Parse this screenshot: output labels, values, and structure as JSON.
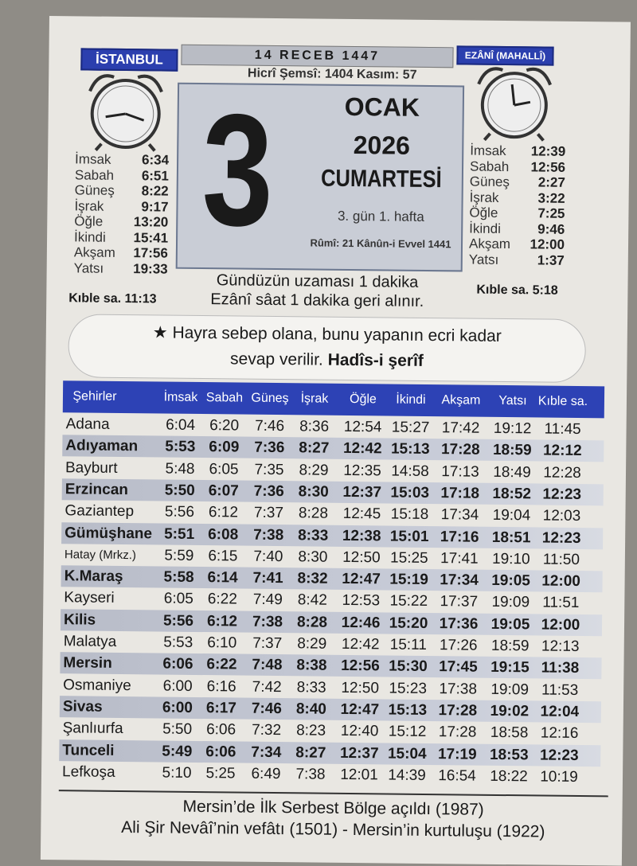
{
  "header": {
    "city": "İSTANBUL",
    "hijri_date": "14 RECEB 1447",
    "ezani_label": "EZÂNÎ (MAHALLÎ)",
    "hicri_semsi": "Hicrî Şemsî: 1404  Kasım: 57"
  },
  "date": {
    "day": "3",
    "month": "OCAK",
    "year": "2026",
    "weekday": "CUMARTESİ",
    "week_info": "3. gün  1. hafta",
    "rumi": "Rûmî: 21 Kânûn-i Evvel 1441"
  },
  "vasati_times": [
    {
      "label": "İmsak",
      "value": "6:34"
    },
    {
      "label": "Sabah",
      "value": "6:51"
    },
    {
      "label": "Güneş",
      "value": "8:22"
    },
    {
      "label": "İşrak",
      "value": "9:17"
    },
    {
      "label": "Öğle",
      "value": "13:20"
    },
    {
      "label": "İkindi",
      "value": "15:41"
    },
    {
      "label": "Akşam",
      "value": "17:56"
    },
    {
      "label": "Yatsı",
      "value": "19:33"
    }
  ],
  "vasati_kible": "Kıble sa. 11:13",
  "ezani_times": [
    {
      "label": "İmsak",
      "value": "12:39"
    },
    {
      "label": "Sabah",
      "value": "12:56"
    },
    {
      "label": "Güneş",
      "value": "2:27"
    },
    {
      "label": "İşrak",
      "value": "3:22"
    },
    {
      "label": "Öğle",
      "value": "7:25"
    },
    {
      "label": "İkindi",
      "value": "9:46"
    },
    {
      "label": "Akşam",
      "value": "12:00"
    },
    {
      "label": "Yatsı",
      "value": "1:37"
    }
  ],
  "ezani_kible": "Kıble sa.  5:18",
  "notes": [
    "Gündüzün uzaması 1 dakika",
    "Ezânî sâat 1 dakika geri alınır."
  ],
  "hadis": {
    "line1": "★ Hayra sebep olana, bunu yapanın ecri kadar",
    "line2": "sevap verilir. ",
    "source": "Hadîs-i şerîf"
  },
  "table": {
    "headers": [
      "Şehirler",
      "İmsak",
      "Sabah",
      "Güneş",
      "İşrak",
      "Öğle",
      "İkindi",
      "Akşam",
      "Yatsı",
      "Kıble sa."
    ],
    "rows": [
      [
        "Adana",
        "6:04",
        "6:20",
        "7:46",
        "8:36",
        "12:54",
        "15:27",
        "17:42",
        "19:12",
        "11:45"
      ],
      [
        "Adıyaman",
        "5:53",
        "6:09",
        "7:36",
        "8:27",
        "12:42",
        "15:13",
        "17:28",
        "18:59",
        "12:12"
      ],
      [
        "Bayburt",
        "5:48",
        "6:05",
        "7:35",
        "8:29",
        "12:35",
        "14:58",
        "17:13",
        "18:49",
        "12:28"
      ],
      [
        "Erzincan",
        "5:50",
        "6:07",
        "7:36",
        "8:30",
        "12:37",
        "15:03",
        "17:18",
        "18:52",
        "12:23"
      ],
      [
        "Gaziantep",
        "5:56",
        "6:12",
        "7:37",
        "8:28",
        "12:45",
        "15:18",
        "17:34",
        "19:04",
        "12:03"
      ],
      [
        "Gümüşhane",
        "5:51",
        "6:08",
        "7:38",
        "8:33",
        "12:38",
        "15:01",
        "17:16",
        "18:51",
        "12:23"
      ],
      [
        "Hatay (Mrkz.)",
        "5:59",
        "6:15",
        "7:40",
        "8:30",
        "12:50",
        "15:25",
        "17:41",
        "19:10",
        "11:50"
      ],
      [
        "K.Maraş",
        "5:58",
        "6:14",
        "7:41",
        "8:32",
        "12:47",
        "15:19",
        "17:34",
        "19:05",
        "12:00"
      ],
      [
        "Kayseri",
        "6:05",
        "6:22",
        "7:49",
        "8:42",
        "12:53",
        "15:22",
        "17:37",
        "19:09",
        "11:51"
      ],
      [
        "Kilis",
        "5:56",
        "6:12",
        "7:38",
        "8:28",
        "12:46",
        "15:20",
        "17:36",
        "19:05",
        "12:00"
      ],
      [
        "Malatya",
        "5:53",
        "6:10",
        "7:37",
        "8:29",
        "12:42",
        "15:11",
        "17:26",
        "18:59",
        "12:13"
      ],
      [
        "Mersin",
        "6:06",
        "6:22",
        "7:48",
        "8:38",
        "12:56",
        "15:30",
        "17:45",
        "19:15",
        "11:38"
      ],
      [
        "Osmaniye",
        "6:00",
        "6:16",
        "7:42",
        "8:33",
        "12:50",
        "15:23",
        "17:38",
        "19:09",
        "11:53"
      ],
      [
        "Sivas",
        "6:00",
        "6:17",
        "7:46",
        "8:40",
        "12:47",
        "15:13",
        "17:28",
        "19:02",
        "12:04"
      ],
      [
        "Şanlıurfa",
        "5:50",
        "6:06",
        "7:32",
        "8:23",
        "12:40",
        "15:12",
        "17:28",
        "18:58",
        "12:16"
      ],
      [
        "Tunceli",
        "5:49",
        "6:06",
        "7:34",
        "8:27",
        "12:37",
        "15:04",
        "17:19",
        "18:53",
        "12:23"
      ],
      [
        "Lefkoşa",
        "5:10",
        "5:25",
        "6:49",
        "7:38",
        "12:01",
        "14:39",
        "16:54",
        "18:22",
        "10:19"
      ]
    ]
  },
  "footer": [
    "Mersin’de İlk Serbest Bölge açıldı (1987)",
    "Ali Şir Nevâî’nin vefâtı (1501) - Mersin’in kurtuluşu (1922)"
  ],
  "colors": {
    "accent_blue": "#2d42b5",
    "paper": "#e9e7e2",
    "band": "#c0c4d0"
  }
}
